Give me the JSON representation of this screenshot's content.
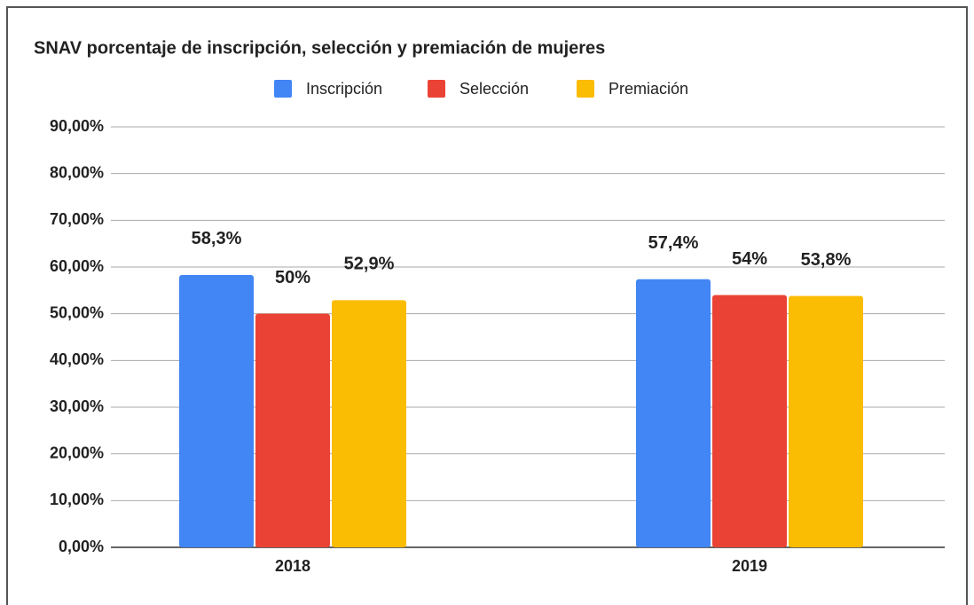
{
  "chart_data": {
    "type": "bar",
    "title": "SNAV porcentaje de inscripción, selección y premiación de mujeres",
    "categories": [
      "2018",
      "2019"
    ],
    "series": [
      {
        "name": "Inscripción",
        "color": "#4285f4",
        "values": [
          58.3,
          57.4
        ],
        "value_labels": [
          "58,3%",
          "57,4%"
        ]
      },
      {
        "name": "Selección",
        "color": "#ea4335",
        "values": [
          50,
          54
        ],
        "value_labels": [
          "50%",
          "54%"
        ]
      },
      {
        "name": "Premiación",
        "color": "#fbbc04",
        "values": [
          52.9,
          53.8
        ],
        "value_labels": [
          "52,9%",
          "53,8%"
        ]
      }
    ],
    "ylim": [
      0,
      90
    ],
    "yticks": [
      {
        "value": 0,
        "label": "0,00%"
      },
      {
        "value": 10,
        "label": "10,00%"
      },
      {
        "value": 20,
        "label": "20,00%"
      },
      {
        "value": 30,
        "label": "30,00%"
      },
      {
        "value": 40,
        "label": "40,00%"
      },
      {
        "value": 50,
        "label": "50,00%"
      },
      {
        "value": 60,
        "label": "60,00%"
      },
      {
        "value": 70,
        "label": "70,00%"
      },
      {
        "value": 80,
        "label": "80,00%"
      },
      {
        "value": 90,
        "label": "90,00%"
      }
    ],
    "grid": true,
    "legend": "top"
  }
}
